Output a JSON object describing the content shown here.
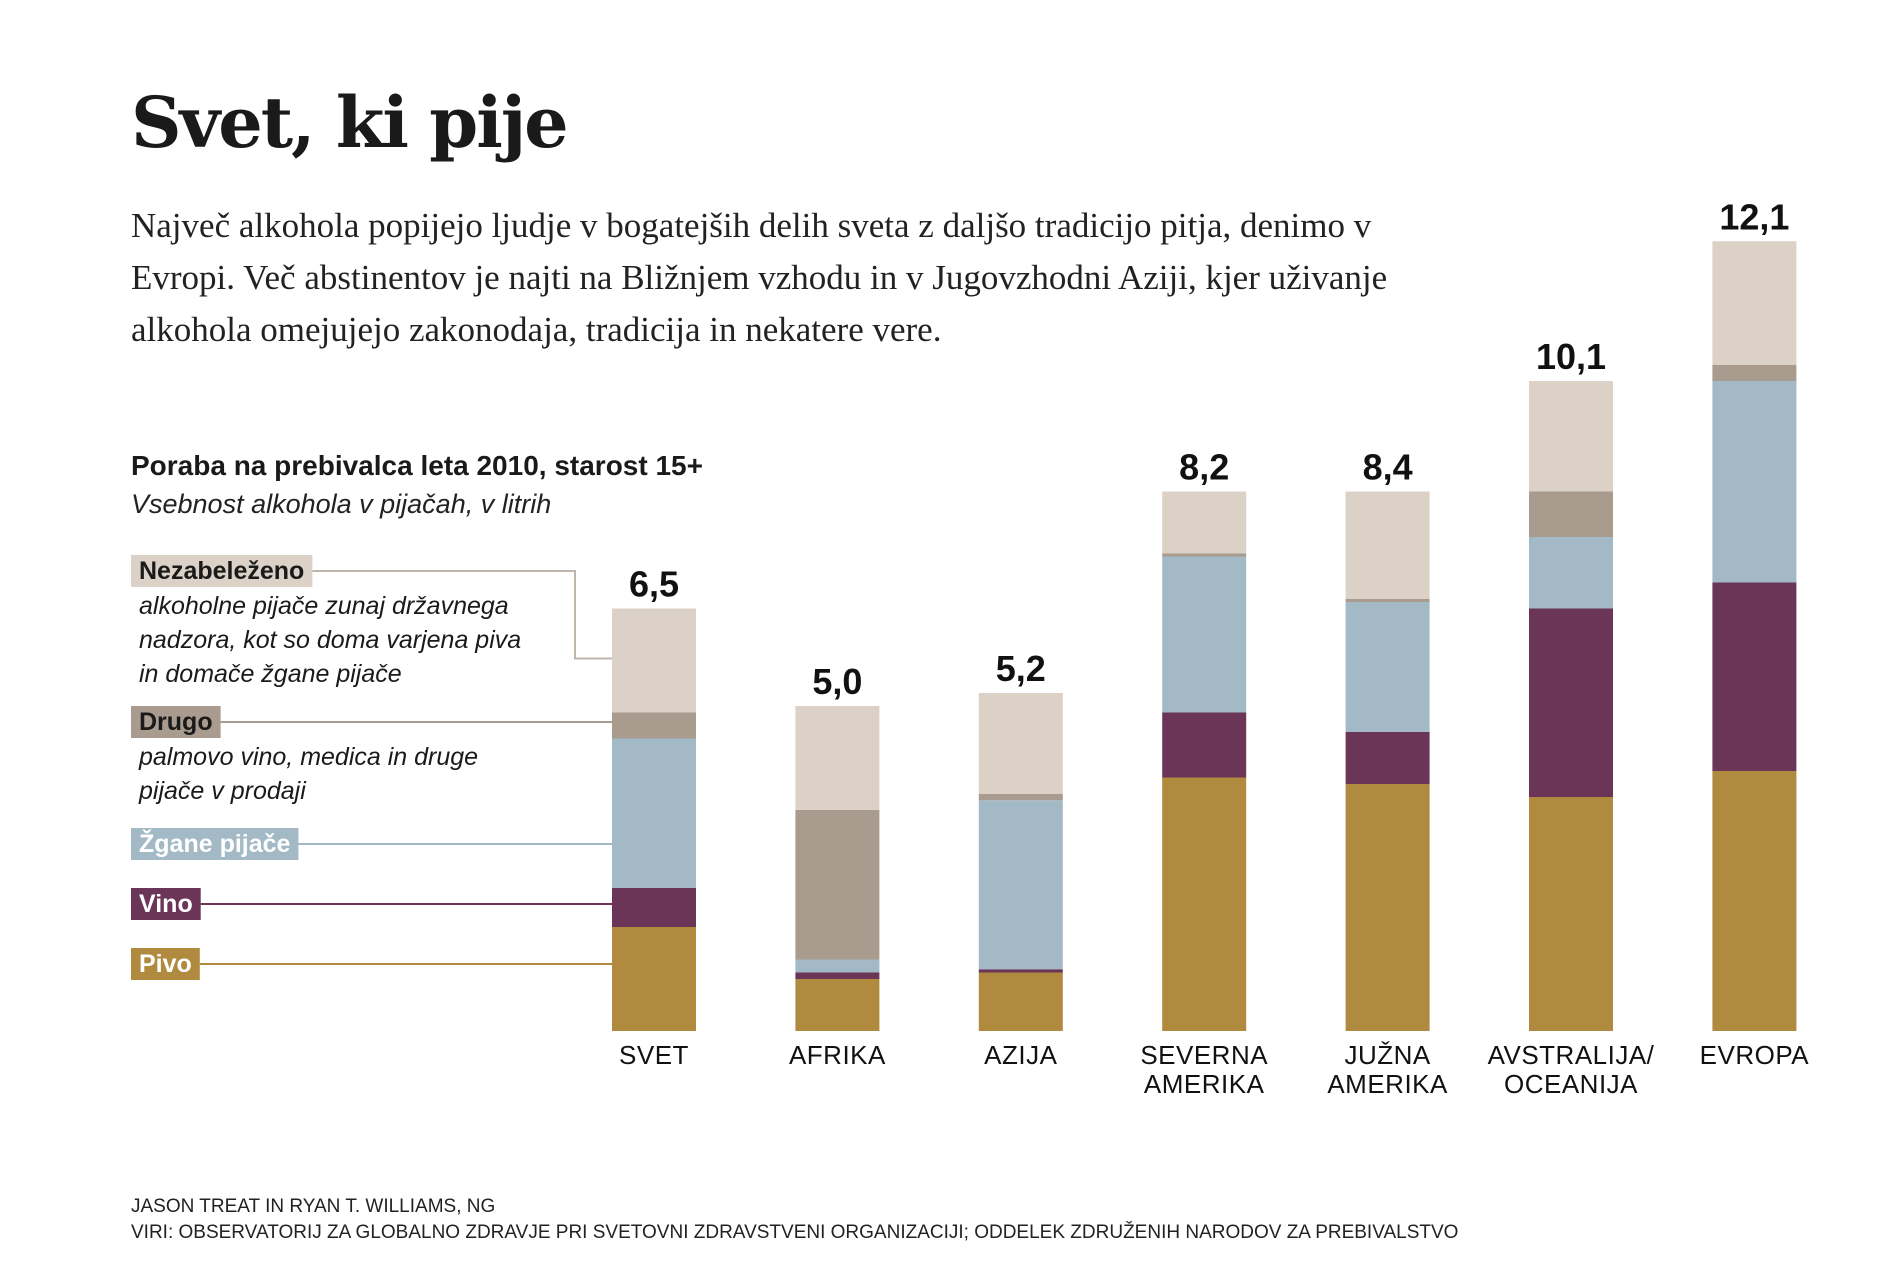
{
  "header": {
    "title": "Svet, ki pije",
    "intro": "Največ alkohola popijejo ljudje v bogatejših delih sveta z daljšo tradicijo pitja, denimo v Evropi. Več abstinentov je najti na Bližnjem vzhodu in v Jugovzhodni Aziji, kjer uživanje alkohola omejujejo zakonodaja, tradicija in nekatere vere."
  },
  "credits": {
    "line1": "JASON TREAT IN RYAN T. WILLIAMS, NG",
    "line2": "VIRI: OBSERVATORIJ ZA GLOBALNO ZDRAVJE PRI SVETOVNI ZDRAVSTVENI ORGANIZACIJI; ODDELEK ZDRUŽENIH NARODOV ZA PREBIVALSTVO"
  },
  "chart_data": {
    "type": "bar",
    "stacked": true,
    "title": "Poraba na prebivalca leta 2010, starost 15+",
    "subtitle": "Vsebnost alkohola v pijačah, v litrih",
    "ylim": [
      0,
      12.1
    ],
    "grid": false,
    "legend_placement": "left",
    "categories": [
      [
        "SVET"
      ],
      [
        "AFRIKA"
      ],
      [
        "AZIJA"
      ],
      [
        "SEVERNA",
        "AMERIKA"
      ],
      [
        "JUŽNA",
        "AMERIKA"
      ],
      [
        "AVSTRALIJA/",
        "OCEANIJA"
      ],
      [
        "EVROPA"
      ]
    ],
    "totals": [
      "6,5",
      "5,0",
      "5,2",
      "8,2",
      "8,4",
      "10,1",
      "12,1"
    ],
    "series": [
      {
        "name": "Pivo",
        "color": "#b08a3f",
        "text_color": "#ffffff",
        "values": [
          1.6,
          0.8,
          0.9,
          3.9,
          3.8,
          3.6,
          4.0
        ]
      },
      {
        "name": "Vino",
        "color": "#6b3558",
        "text_color": "#ffffff",
        "values": [
          0.6,
          0.1,
          0.05,
          1.0,
          0.8,
          2.9,
          2.9
        ]
      },
      {
        "name": "Žgane pijače",
        "color": "#a3b9c5",
        "text_color": "#ffffff",
        "values": [
          2.3,
          0.2,
          2.6,
          2.4,
          2.0,
          1.1,
          3.1
        ]
      },
      {
        "name": "Drugo",
        "color": "#a99c8f",
        "text_color": "#1a1a1a",
        "description": [
          "palmovo vino, medica in druge",
          "pijače v prodaji"
        ],
        "values": [
          0.4,
          2.3,
          0.1,
          0.05,
          0.05,
          0.7,
          0.25
        ]
      },
      {
        "name": "Nezabeleženo",
        "color": "#dbd1c6",
        "text_color": "#1a1a1a",
        "description": [
          "alkoholne pijače zunaj državnega",
          "nadzora, kot so doma varjena piva",
          "in domače žgane pijače"
        ],
        "values": [
          1.6,
          1.6,
          1.55,
          0.95,
          1.65,
          1.7,
          1.9
        ]
      }
    ]
  }
}
